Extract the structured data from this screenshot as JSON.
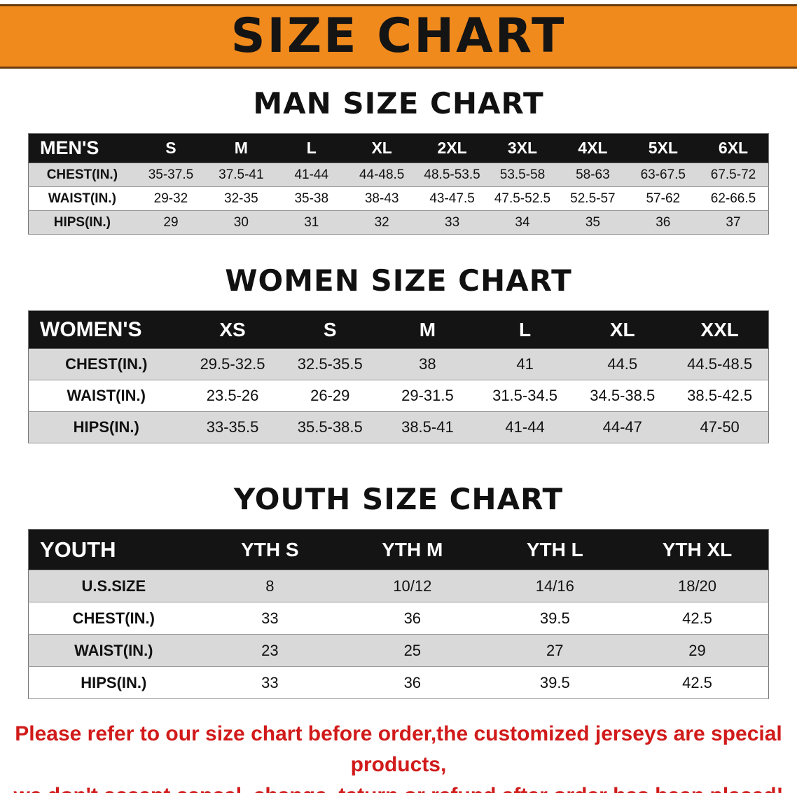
{
  "banner": {
    "title": "SIZE CHART"
  },
  "colors": {
    "banner_bg": "#f08a1d",
    "table_header_bg": "#141414",
    "row_stripe": "#d9d9d9",
    "note_red": "#d11a1a"
  },
  "sections": {
    "men": {
      "heading": "MAN SIZE CHART",
      "table": {
        "corner": "MEN'S",
        "columns": [
          "S",
          "M",
          "L",
          "XL",
          "2XL",
          "3XL",
          "4XL",
          "5XL",
          "6XL"
        ],
        "rows": [
          {
            "label": "CHEST(IN.)",
            "values": [
              "35-37.5",
              "37.5-41",
              "41-44",
              "44-48.5",
              "48.5-53.5",
              "53.5-58",
              "58-63",
              "63-67.5",
              "67.5-72"
            ]
          },
          {
            "label": "WAIST(IN.)",
            "values": [
              "29-32",
              "32-35",
              "35-38",
              "38-43",
              "43-47.5",
              "47.5-52.5",
              "52.5-57",
              "57-62",
              "62-66.5"
            ]
          },
          {
            "label": "HIPS(IN.)",
            "values": [
              "29",
              "30",
              "31",
              "32",
              "33",
              "34",
              "35",
              "36",
              "37"
            ]
          }
        ]
      }
    },
    "women": {
      "heading": "WOMEN SIZE CHART",
      "table": {
        "corner": "WOMEN'S",
        "columns": [
          "XS",
          "S",
          "M",
          "L",
          "XL",
          "XXL"
        ],
        "rows": [
          {
            "label": "CHEST(IN.)",
            "values": [
              "29.5-32.5",
              "32.5-35.5",
              "38",
              "41",
              "44.5",
              "44.5-48.5"
            ]
          },
          {
            "label": "WAIST(IN.)",
            "values": [
              "23.5-26",
              "26-29",
              "29-31.5",
              "31.5-34.5",
              "34.5-38.5",
              "38.5-42.5"
            ]
          },
          {
            "label": "HIPS(IN.)",
            "values": [
              "33-35.5",
              "35.5-38.5",
              "38.5-41",
              "41-44",
              "44-47",
              "47-50"
            ]
          }
        ]
      }
    },
    "youth": {
      "heading": "YOUTH SIZE CHART",
      "table": {
        "corner": "YOUTH",
        "columns": [
          "YTH S",
          "YTH M",
          "YTH L",
          "YTH XL"
        ],
        "rows": [
          {
            "label": "U.S.SIZE",
            "values": [
              "8",
              "10/12",
              "14/16",
              "18/20"
            ]
          },
          {
            "label": "CHEST(IN.)",
            "values": [
              "33",
              "36",
              "39.5",
              "42.5"
            ]
          },
          {
            "label": "WAIST(IN.)",
            "values": [
              "23",
              "25",
              "27",
              "29"
            ]
          },
          {
            "label": "HIPS(IN.)",
            "values": [
              "33",
              "36",
              "39.5",
              "42.5"
            ]
          }
        ]
      }
    }
  },
  "footer": {
    "line1": "Please refer to our size chart before order,the customized jerseys are special products,",
    "line2": "we don't accept cancel, change, teturn or refund after order has been placed!"
  }
}
